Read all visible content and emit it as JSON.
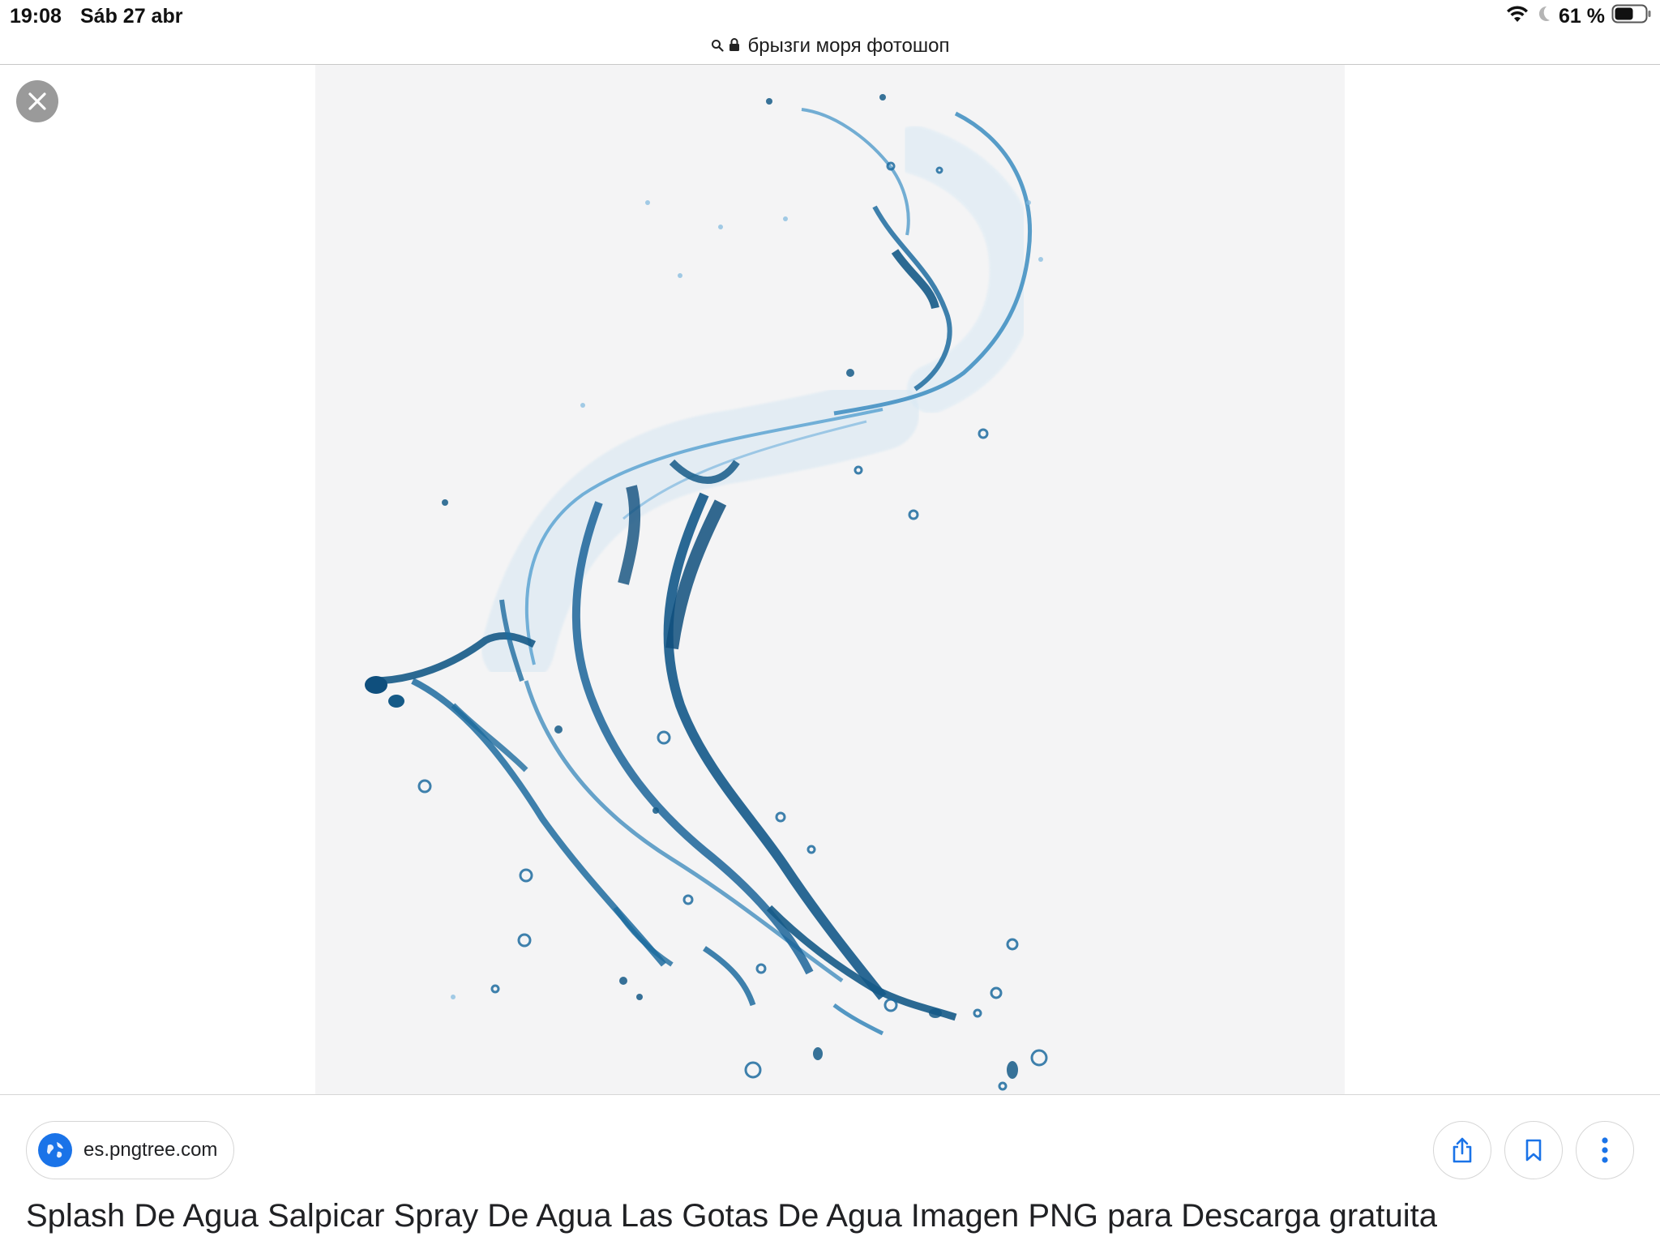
{
  "status_bar": {
    "time": "19:08",
    "date": "Sáb 27 abr",
    "battery_percent": "61 %",
    "battery_level": 0.61,
    "icons": [
      "wifi-icon",
      "do-not-disturb-moon-icon",
      "battery-icon"
    ]
  },
  "address_bar": {
    "url_text": "брызги моря фотошоп",
    "icons": [
      "search-icon",
      "lock-icon"
    ]
  },
  "viewer": {
    "close_icon": "close-icon",
    "image_subject": "water-splash-image"
  },
  "result": {
    "source_domain": "es.pngtree.com",
    "source_icon": "globe-icon",
    "title": "Splash De Agua Salpicar Spray De Agua Las Gotas De Agua Imagen PNG para Descarga gratuita",
    "actions": [
      "share-icon",
      "bookmark-icon",
      "more-vertical-icon"
    ]
  },
  "colors": {
    "accent_blue": "#1a73e8",
    "splash_blue": "#1f6fa3",
    "image_background": "#f4f4f5"
  }
}
